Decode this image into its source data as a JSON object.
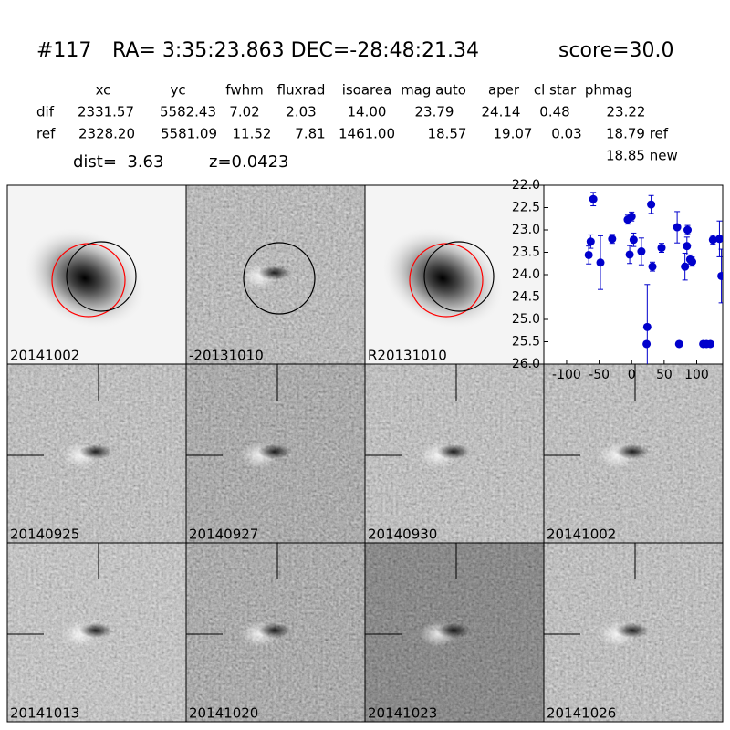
{
  "header": {
    "id": "#117",
    "coords": "RA= 3:35:23.863 DEC=-28:48:21.34",
    "score": "score=30.0"
  },
  "table": {
    "columns": [
      "xc",
      "yc",
      "fwhm",
      "fluxrad",
      "isoarea",
      "mag auto",
      "aper",
      "cl star",
      "phmag"
    ],
    "rows": [
      [
        "dif",
        "2331.57",
        "5582.43",
        "7.02",
        "2.03",
        "14.00",
        "23.79",
        "24.14",
        "0.48",
        "23.22"
      ],
      [
        "ref",
        "2328.20",
        "5581.09",
        "11.52",
        "7.81",
        "1461.00",
        "18.57",
        "19.07",
        "0.03",
        "18.79 ref"
      ]
    ],
    "note": "18.85 new"
  },
  "dist": "dist=  3.63",
  "z": "z=0.0423",
  "panels": [
    {
      "label": "20141002"
    },
    {
      "label": "-20131010"
    },
    {
      "label": "R20131010"
    },
    {
      "label": "20140925"
    },
    {
      "label": "20140927"
    },
    {
      "label": "20140930"
    },
    {
      "label": "20141002",
      "label_color": "#ff0000"
    },
    {
      "label": "20141013"
    },
    {
      "label": "20141020"
    },
    {
      "label": "20141023"
    },
    {
      "label": "20141026"
    }
  ],
  "chart_data": {
    "type": "scatter",
    "color": "#0000cc",
    "x": [
      -66,
      -63,
      -59,
      -48,
      -30,
      -6,
      0,
      -3,
      3,
      15,
      24,
      23,
      30,
      32,
      46,
      70,
      73,
      82,
      85,
      86,
      90,
      93,
      110,
      115,
      121,
      125,
      135,
      138
    ],
    "values": [
      23.56,
      23.26,
      22.31,
      23.73,
      23.2,
      22.77,
      22.7,
      23.55,
      23.22,
      23.48,
      25.17,
      25.55,
      22.43,
      23.82,
      23.4,
      22.94,
      25.55,
      23.82,
      23.36,
      23.0,
      23.66,
      23.71,
      25.55,
      25.55,
      25.55,
      23.22,
      23.2,
      24.03
    ],
    "errors": [
      0.2,
      0.15,
      0.15,
      0.6,
      0.1,
      0.1,
      0.1,
      0.2,
      0.15,
      0.3,
      0.95,
      0.05,
      0.2,
      0.1,
      0.1,
      0.35,
      0.05,
      0.3,
      0.2,
      0.1,
      0.1,
      0.1,
      0.05,
      0.05,
      0.05,
      0.1,
      0.4,
      0.6
    ],
    "xlim": [
      -135,
      140
    ],
    "xticks": [
      -100,
      -50,
      0,
      50,
      100
    ],
    "ylim": [
      26.0,
      22.0
    ],
    "yticks": [
      {
        "value": 22,
        "label": "22.0"
      },
      {
        "value": 22.5,
        "label": "22.5"
      },
      {
        "value": 23,
        "label": "23.0"
      },
      {
        "value": 23.5,
        "label": "23.5"
      },
      {
        "value": 24,
        "label": "24.0"
      },
      {
        "value": 24.5,
        "label": "24.5"
      },
      {
        "value": 25,
        "label": "25.0"
      },
      {
        "value": 25.5,
        "label": "25.5"
      },
      {
        "value": 26,
        "label": "26.0"
      }
    ]
  }
}
